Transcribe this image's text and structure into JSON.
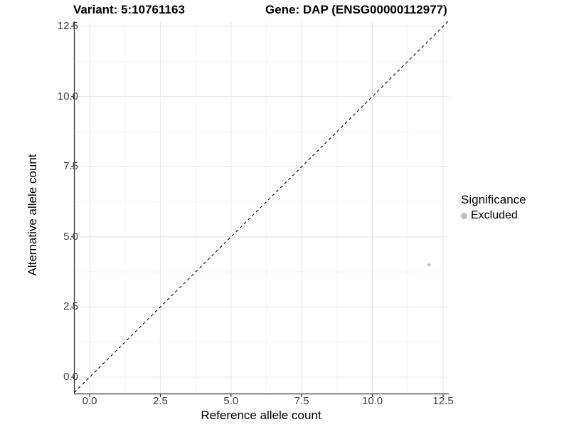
{
  "title": {
    "variant": "Variant: 5:10761163",
    "gene": "Gene: DAP (ENSG00000112977)"
  },
  "chart_data": {
    "type": "scatter",
    "xlabel": "Reference allele count",
    "ylabel": "Alternative allele count",
    "x_ticks": {
      "values": [
        0,
        2.5,
        5,
        7.5,
        10,
        12.5
      ],
      "labels": [
        "0.0",
        "2.5",
        "5.0",
        "7.5",
        "10.0",
        "12.5"
      ]
    },
    "y_ticks": {
      "values": [
        0,
        2.5,
        5,
        7.5,
        10,
        12.5
      ],
      "labels": [
        "0.0",
        "2.5",
        "5.0",
        "7.5",
        "10.0",
        "12.5"
      ]
    },
    "xlim": [
      -0.54,
      12.7
    ],
    "ylim": [
      -0.6,
      12.68
    ],
    "grid": true,
    "series": [
      {
        "name": "Excluded",
        "color": "#bebebe",
        "point_radius": 2.2,
        "points": [
          {
            "x": 12,
            "y": 4
          }
        ]
      }
    ],
    "reference_line": {
      "type": "identity",
      "slope": 1,
      "intercept": 0,
      "style": "dashed",
      "color": "#000000"
    },
    "legend": {
      "title": "Significance",
      "position": "right",
      "items": [
        {
          "label": "Excluded",
          "color": "#bebebe"
        }
      ]
    }
  },
  "colors": {
    "background": "#ffffff",
    "grid_major": "#e7e7e7",
    "grid_minor": "#f2f2f2",
    "axis_line": "#2f2f2f",
    "tick_text": "#404040"
  }
}
